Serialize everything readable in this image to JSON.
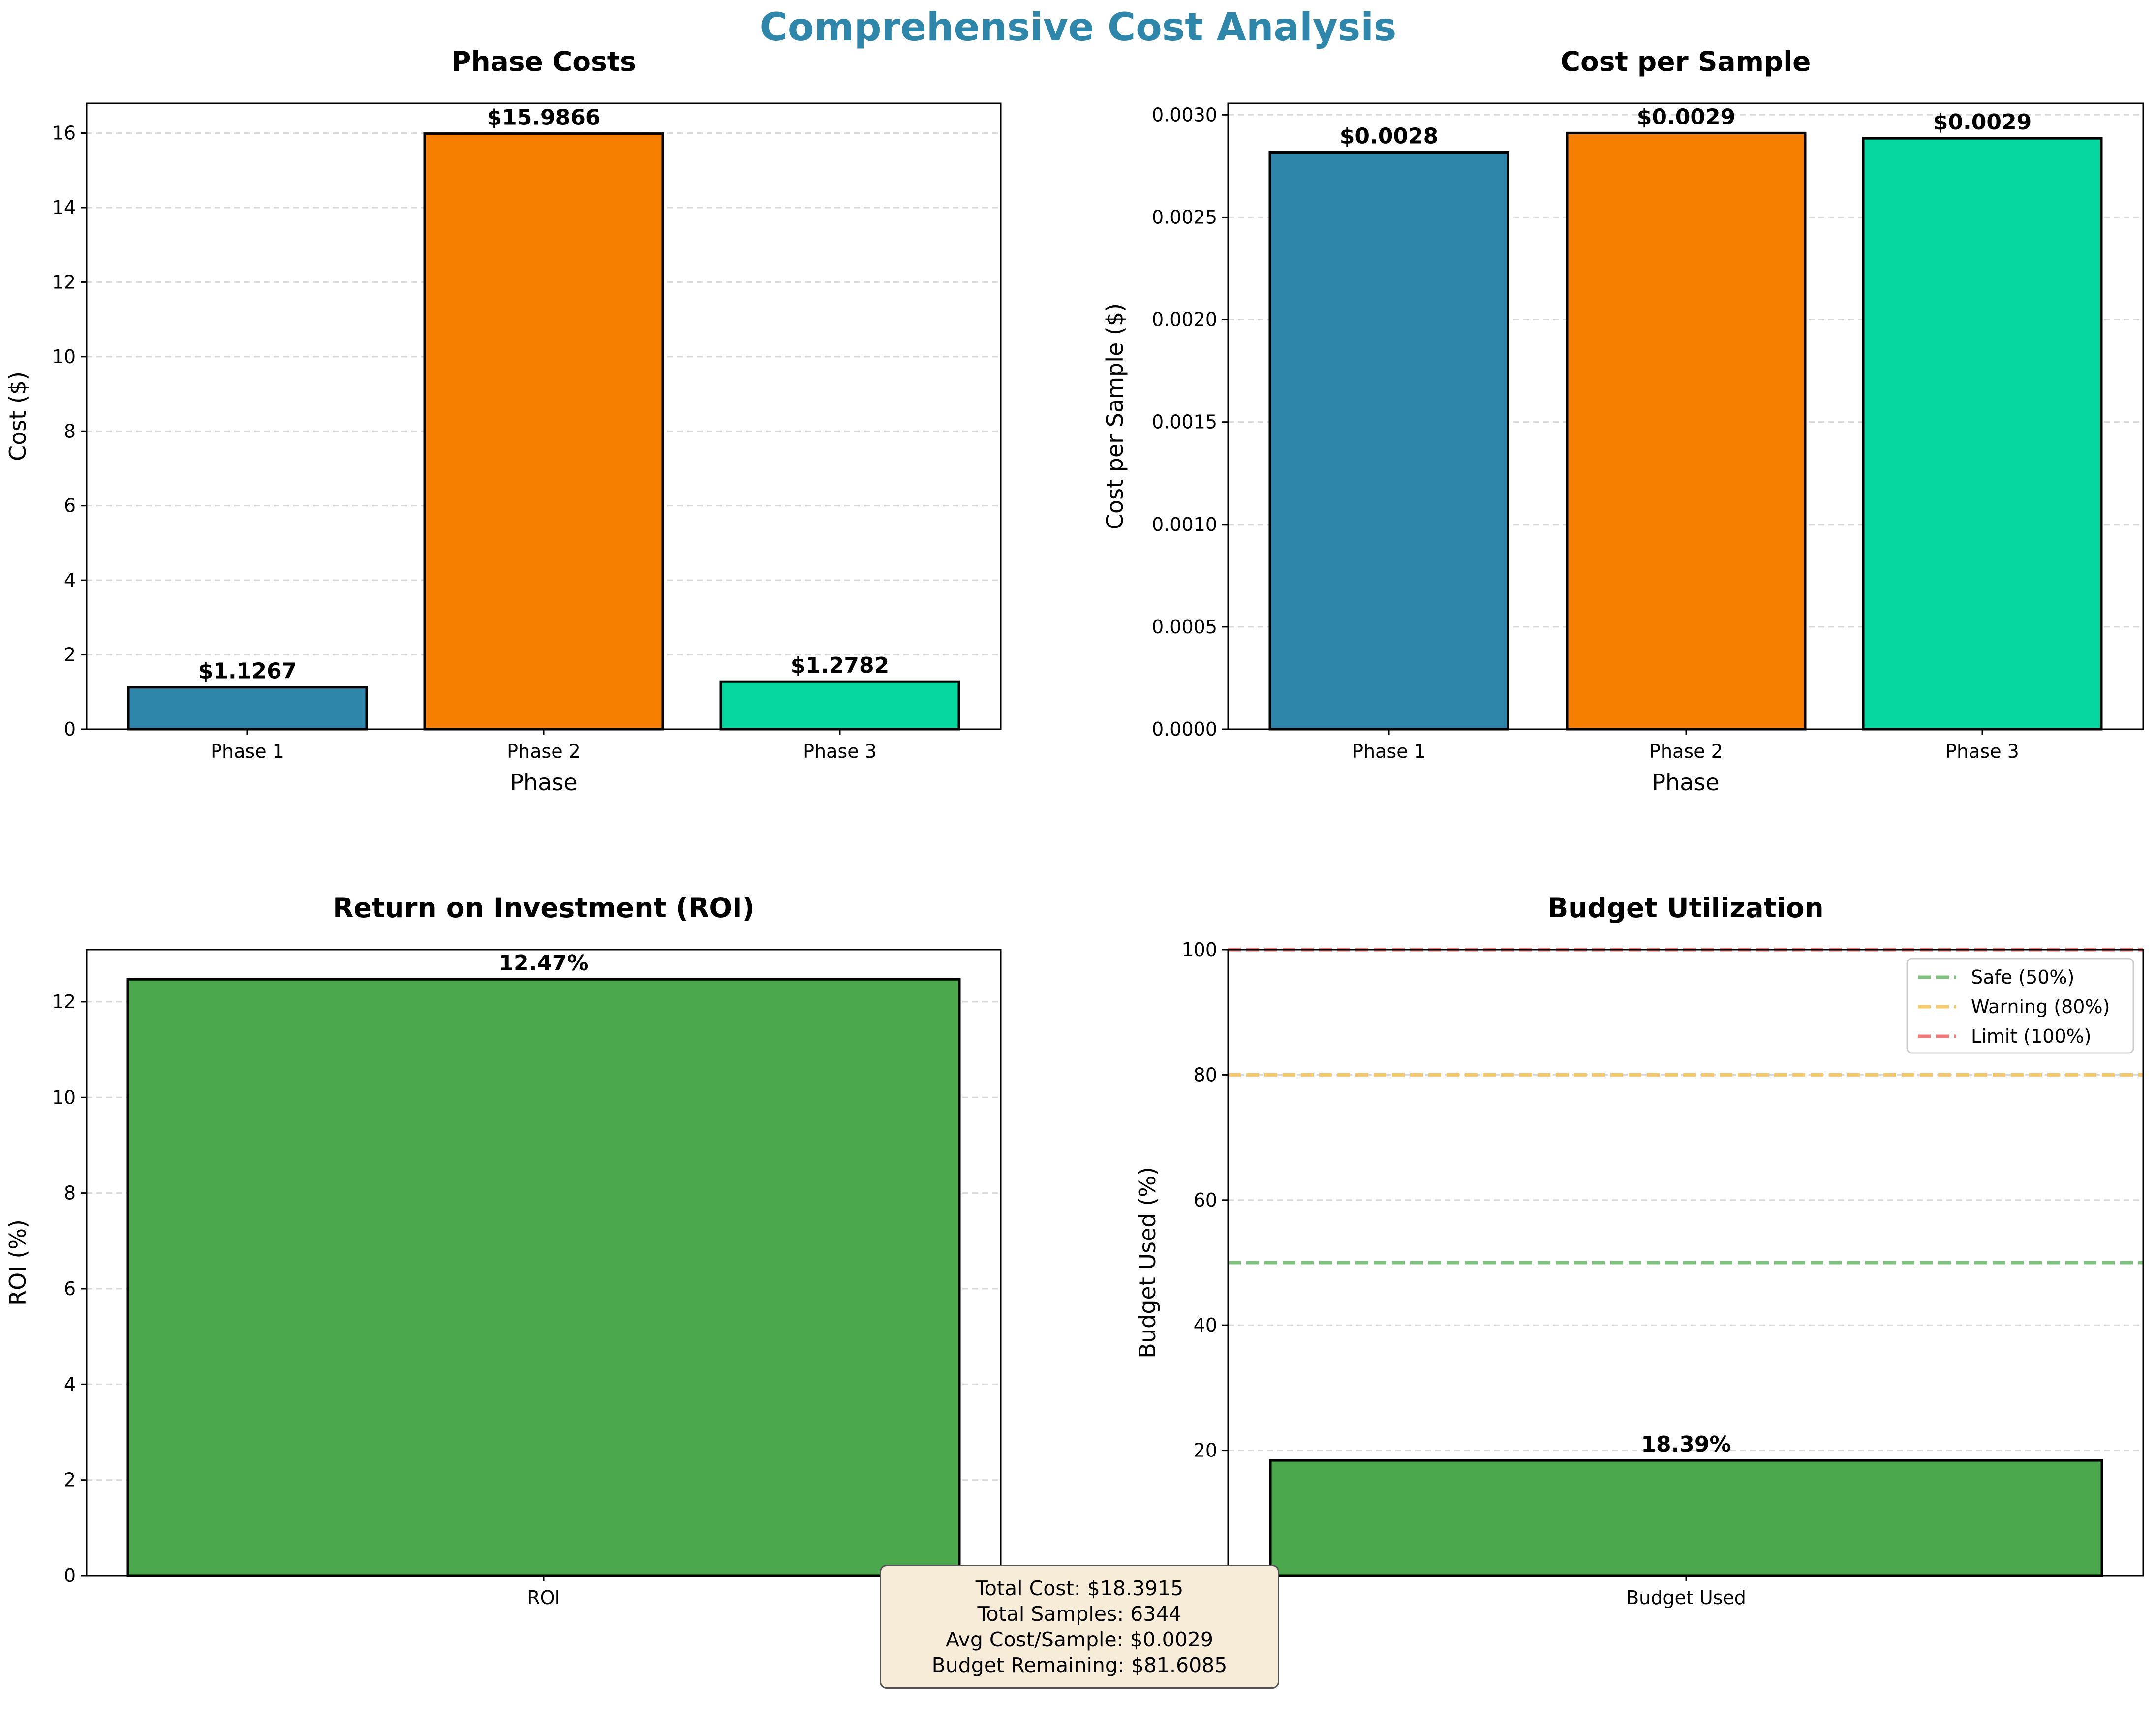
{
  "figure": {
    "title": "Comprehensive Cost Analysis",
    "title_color": "#2e86ab"
  },
  "chart_data": [
    {
      "type": "bar",
      "title": "Phase Costs",
      "xlabel": "Phase",
      "ylabel": "Cost ($)",
      "categories": [
        "Phase 1",
        "Phase 2",
        "Phase 3"
      ],
      "values": [
        1.1267,
        15.9866,
        1.2782
      ],
      "value_labels": [
        "$1.1267",
        "$15.9866",
        "$1.2782"
      ],
      "colors": [
        "#2e86ab",
        "#f77f00",
        "#06d6a0"
      ],
      "ylim": [
        0,
        16.8
      ],
      "yticks": [
        0,
        2,
        4,
        6,
        8,
        10,
        12,
        14,
        16
      ],
      "ytick_labels": [
        "0",
        "2",
        "4",
        "6",
        "8",
        "10",
        "12",
        "14",
        "16"
      ],
      "grid": true
    },
    {
      "type": "bar",
      "title": "Cost per Sample",
      "xlabel": "Phase",
      "ylabel": "Cost per Sample ($)",
      "categories": [
        "Phase 1",
        "Phase 2",
        "Phase 3"
      ],
      "values": [
        0.002817,
        0.002911,
        0.002885
      ],
      "value_labels": [
        "$0.0028",
        "$0.0029",
        "$0.0029"
      ],
      "colors": [
        "#2e86ab",
        "#f77f00",
        "#06d6a0"
      ],
      "ylim": [
        0,
        0.003056
      ],
      "yticks": [
        0,
        0.0005,
        0.001,
        0.0015,
        0.002,
        0.0025,
        0.003
      ],
      "ytick_labels": [
        "0.0000",
        "0.0005",
        "0.0010",
        "0.0015",
        "0.0020",
        "0.0025",
        "0.0030"
      ],
      "grid": true
    },
    {
      "type": "bar",
      "title": "Return on Investment (ROI)",
      "xlabel": "",
      "ylabel": "ROI (%)",
      "categories": [
        "ROI"
      ],
      "values": [
        12.47
      ],
      "value_labels": [
        "12.47%"
      ],
      "colors": [
        "#4ca84c"
      ],
      "ylim": [
        0,
        13.09
      ],
      "yticks": [
        0,
        2,
        4,
        6,
        8,
        10,
        12
      ],
      "ytick_labels": [
        "0",
        "2",
        "4",
        "6",
        "8",
        "10",
        "12"
      ],
      "grid": true
    },
    {
      "type": "bar",
      "title": "Budget Utilization",
      "xlabel": "",
      "ylabel": "Budget Used (%)",
      "categories": [
        "Budget Used"
      ],
      "values": [
        18.39
      ],
      "value_labels": [
        "18.39%"
      ],
      "colors": [
        "#4ca84c"
      ],
      "ylim": [
        0,
        100
      ],
      "yticks": [
        0,
        20,
        40,
        60,
        80,
        100
      ],
      "ytick_labels": [
        "0",
        "20",
        "40",
        "60",
        "80",
        "100"
      ],
      "grid": true,
      "reference_lines": [
        {
          "name": "Safe (50%)",
          "y": 50,
          "color": "#7fbf7f"
        },
        {
          "name": "Warning (80%)",
          "y": 80,
          "color": "#f7c96e"
        },
        {
          "name": "Limit (100%)",
          "y": 100,
          "color": "#f07a7a"
        }
      ],
      "legend_position": "top-right"
    }
  ],
  "summary": {
    "total_cost": "Total Cost: $18.3915",
    "total_samples": "Total Samples: 6344",
    "avg_cost": "Avg Cost/Sample: $0.0029",
    "budget_remaining": "Budget Remaining: $81.6085"
  }
}
